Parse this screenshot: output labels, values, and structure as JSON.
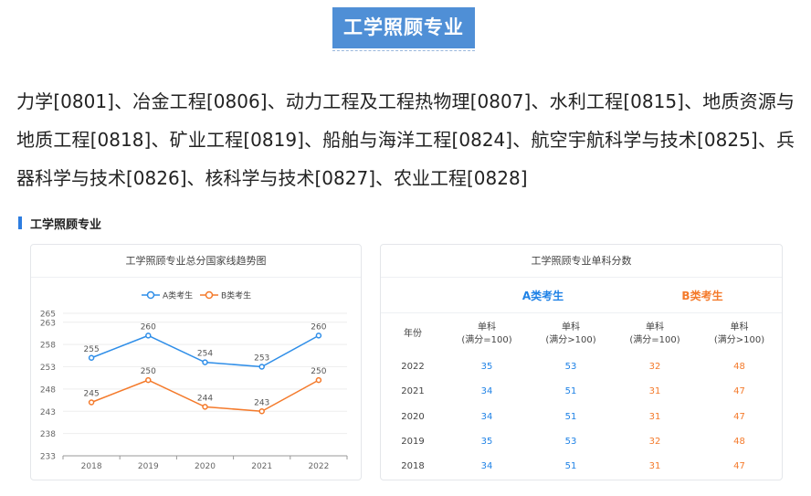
{
  "page": {
    "title": "工学照顾专业",
    "intro": "力学[0801]、冶金工程[0806]、动力工程及工程热物理[0807]、水利工程[0815]、地质资源与地质工程[0818]、矿业工程[0819]、船舶与海洋工程[0824]、航空宇航科学与技术[0825]、兵器科学与技术[0826]、核科学与技术[0827]、农业工程[0828]",
    "section_label": "工学照顾专业"
  },
  "chart_card": {
    "title": "工学照顾专业总分国家线趋势图"
  },
  "chart_data": {
    "type": "line",
    "title": "工学照顾专业总分国家线趋势图",
    "categories": [
      "2018",
      "2019",
      "2020",
      "2021",
      "2022"
    ],
    "series": [
      {
        "name": "A类考生",
        "color": "#2f8ee8",
        "values": [
          255,
          260,
          254,
          253,
          260
        ]
      },
      {
        "name": "B类考生",
        "color": "#f47a2b",
        "values": [
          245,
          250,
          244,
          243,
          250
        ]
      }
    ],
    "y_ticks": [
      233,
      238,
      243,
      248,
      253,
      258,
      263,
      265
    ],
    "ylim": [
      233,
      265
    ],
    "legend_position": "top-center",
    "grid": true
  },
  "table_card": {
    "title": "工学照顾专业单科分数",
    "category_a": "A类考生",
    "category_b": "B类考生",
    "header": {
      "year": "年份",
      "col1": [
        "单科",
        "(满分=100)"
      ],
      "col2": [
        "单科",
        "(满分>100)"
      ],
      "col3": [
        "单科",
        "(满分=100)"
      ],
      "col4": [
        "单科",
        "(满分>100)"
      ]
    },
    "rows": [
      {
        "year": "2022",
        "a1": "35",
        "a2": "53",
        "b1": "32",
        "b2": "48"
      },
      {
        "year": "2021",
        "a1": "34",
        "a2": "51",
        "b1": "31",
        "b2": "47"
      },
      {
        "year": "2020",
        "a1": "34",
        "a2": "51",
        "b1": "31",
        "b2": "47"
      },
      {
        "year": "2019",
        "a1": "35",
        "a2": "53",
        "b1": "32",
        "b2": "48"
      },
      {
        "year": "2018",
        "a1": "34",
        "a2": "51",
        "b1": "31",
        "b2": "47"
      }
    ],
    "colors": {
      "a": "#1f82e6",
      "b": "#f47a2b"
    }
  }
}
